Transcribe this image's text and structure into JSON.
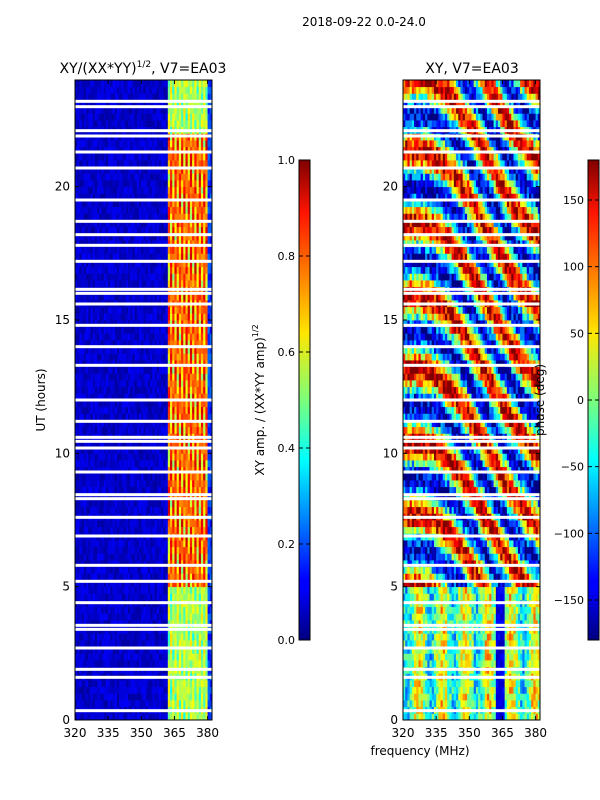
{
  "figure_title": "2018-09-22 0.0-24.0",
  "chart_data": [
    {
      "type": "heatmap",
      "title_main": "XY/(XX*YY)",
      "title_sup": "1/2",
      "title_tail": ", V7=EA03",
      "xlabel": "",
      "ylabel": "UT (hours)",
      "xlim": [
        320,
        382
      ],
      "ylim": [
        0,
        24
      ],
      "x_ticks": [
        320,
        335,
        350,
        365,
        380
      ],
      "y_ticks": [
        0,
        5,
        10,
        15,
        20
      ],
      "colorbar": {
        "label_main": "XY amp. / (XX*YY amp)",
        "label_sup": "1/2",
        "range": [
          0.0,
          1.0
        ],
        "ticks": [
          "0.0",
          "0.2",
          "0.4",
          "0.6",
          "0.8",
          "1.0"
        ],
        "tick_values": [
          0.0,
          0.2,
          0.4,
          0.6,
          0.8,
          1.0
        ],
        "colormap": "jet"
      },
      "features": {
        "high_band_mhz": [
          362,
          380
        ],
        "flag_gaps_ut": [
          0.35,
          1.6,
          1.9,
          2.7,
          3.4,
          3.55,
          4.4,
          5.2,
          5.8,
          6.9,
          7.6,
          8.3,
          8.45,
          9.3,
          10.2,
          10.45,
          10.6,
          11.2,
          12.0,
          13.3,
          14.0,
          14.8,
          15.6,
          16.0,
          16.15,
          17.2,
          17.8,
          18.2,
          18.7,
          19.5,
          20.7,
          21.3,
          21.9,
          22.1,
          23.0,
          23.2
        ]
      }
    },
    {
      "type": "heatmap",
      "title": "XY, V7=EA03",
      "xlabel": "frequency (MHz)",
      "ylabel": "",
      "xlim": [
        320,
        382
      ],
      "ylim": [
        0,
        24
      ],
      "x_ticks": [
        320,
        335,
        350,
        365,
        380
      ],
      "y_ticks": [
        0,
        5,
        10,
        15,
        20
      ],
      "colorbar": {
        "label": "phase (deg)",
        "range": [
          -180,
          180
        ],
        "ticks": [
          "−150",
          "−100",
          "−50",
          "0",
          "50",
          "100",
          "150"
        ],
        "tick_values": [
          -150,
          -100,
          -50,
          0,
          50,
          100,
          150
        ],
        "colormap": "jet"
      },
      "features": {
        "flag_gaps_ut": [
          0.35,
          1.6,
          1.9,
          2.7,
          3.4,
          3.55,
          4.4,
          5.2,
          5.8,
          6.9,
          7.6,
          8.3,
          8.45,
          9.3,
          10.2,
          10.45,
          10.6,
          11.2,
          12.0,
          13.3,
          14.0,
          14.8,
          15.6,
          16.0,
          16.15,
          17.2,
          17.8,
          18.2,
          18.7,
          19.5,
          20.7,
          21.3,
          21.9,
          22.1,
          23.0,
          23.2
        ]
      }
    }
  ]
}
